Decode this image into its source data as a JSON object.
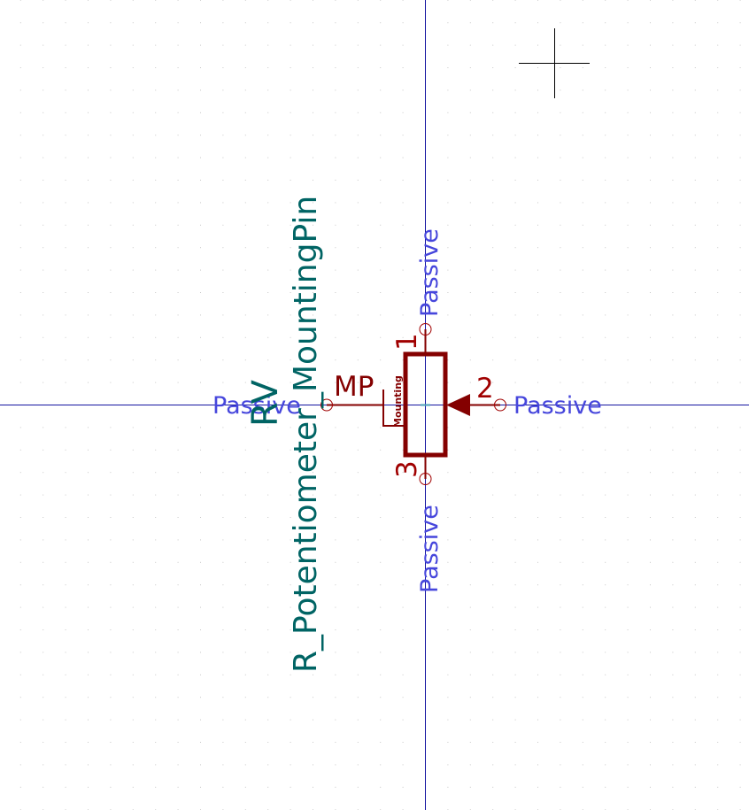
{
  "colors": {
    "background": "#ffffff",
    "grid_dot": "#c8c8c8",
    "axis_line": "#1414a0",
    "cursor": "#000000",
    "symbol_body": "#840000",
    "pin_number": "#a00000",
    "pin_name": "#840000",
    "electrical_type": "#4646dc",
    "field_text": "#006464",
    "pin_end": "#a00000",
    "anchor": "#4aa0b8"
  },
  "symbol": {
    "reference": "RV",
    "value": "R_Potentiometer_MountingPin"
  },
  "pins": [
    {
      "number": "1",
      "electrical_type": "Passive",
      "name": ""
    },
    {
      "number": "2",
      "electrical_type": "Passive",
      "name": ""
    },
    {
      "number": "3",
      "electrical_type": "Passive",
      "name": ""
    },
    {
      "number": "",
      "electrical_type": "Passive",
      "name": "MP"
    }
  ],
  "mounting_label": "Mounting"
}
